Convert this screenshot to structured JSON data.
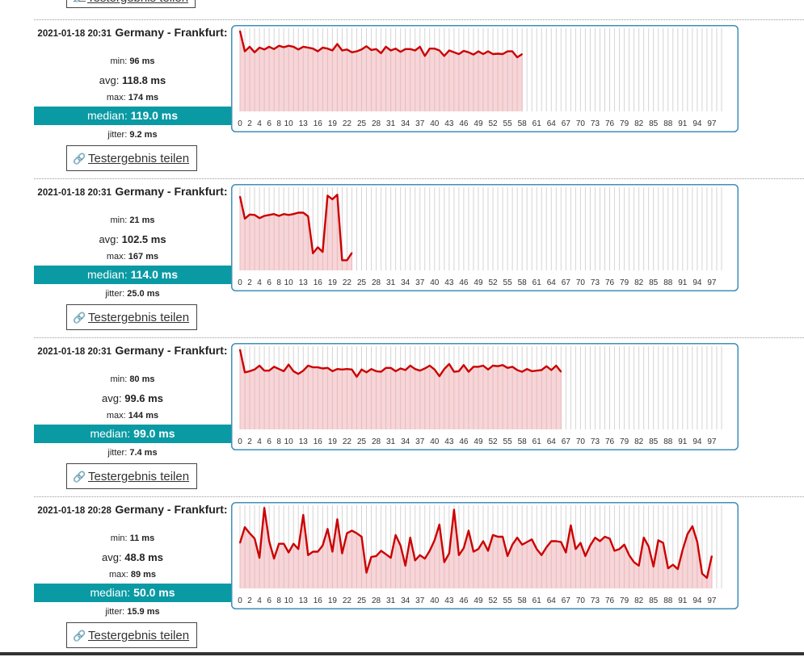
{
  "share_label": "Testergebnis teilen",
  "colors": {
    "accent": "#0a9aa4",
    "line": "#cc0000",
    "fill": "#f6d6d8",
    "frame": "#3f8fb8"
  },
  "icons": {
    "share": "link-icon"
  },
  "chart_data": [
    {
      "type": "line",
      "datetime": "2021-01-18 20:31",
      "location": "Germany - Frankfurt:",
      "stats": {
        "min": "96 ms",
        "avg": "118.8 ms",
        "max": "174 ms",
        "median": "119.0 ms",
        "jitter": "9.2 ms"
      },
      "x_ticks": [
        0,
        2,
        4,
        6,
        8,
        10,
        13,
        16,
        19,
        22,
        25,
        28,
        31,
        34,
        37,
        40,
        43,
        46,
        49,
        52,
        55,
        58,
        61,
        64,
        67,
        70,
        73,
        76,
        79,
        82,
        85,
        88,
        91,
        94,
        97
      ],
      "x_max": 99,
      "ylim": [
        0,
        180
      ],
      "values": [
        174,
        130,
        140,
        128,
        138,
        134,
        140,
        135,
        142,
        139,
        142,
        140,
        134,
        140,
        138,
        136,
        130,
        138,
        136,
        132,
        146,
        132,
        134,
        128,
        130,
        134,
        141,
        133,
        135,
        126,
        140,
        132,
        136,
        129,
        135,
        135,
        132,
        140,
        120,
        136,
        136,
        132,
        120,
        132,
        128,
        124,
        131,
        128,
        123,
        130,
        124,
        130,
        124,
        125,
        124,
        130,
        130,
        117,
        124
      ]
    },
    {
      "type": "line",
      "datetime": "2021-01-18 20:31",
      "location": "Germany - Frankfurt:",
      "stats": {
        "min": "21 ms",
        "avg": "102.5 ms",
        "max": "167 ms",
        "median": "114.0 ms",
        "jitter": "25.0 ms"
      },
      "x_ticks": [
        0,
        2,
        4,
        6,
        8,
        10,
        13,
        16,
        19,
        22,
        25,
        28,
        31,
        34,
        37,
        40,
        43,
        46,
        49,
        52,
        55,
        58,
        61,
        64,
        67,
        70,
        73,
        76,
        79,
        82,
        85,
        88,
        91,
        94,
        97
      ],
      "x_max": 99,
      "ylim": [
        0,
        180
      ],
      "values": [
        160,
        112,
        121,
        120,
        113,
        118,
        120,
        122,
        118,
        122,
        120,
        122,
        125,
        125,
        117,
        37,
        50,
        40,
        162,
        154,
        164,
        22,
        22,
        38
      ]
    },
    {
      "type": "line",
      "datetime": "2021-01-18 20:31",
      "location": "Germany - Frankfurt:",
      "stats": {
        "min": "80 ms",
        "avg": "99.6 ms",
        "max": "144 ms",
        "median": "99.0 ms",
        "jitter": "7.4 ms"
      },
      "x_ticks": [
        0,
        2,
        4,
        6,
        8,
        10,
        13,
        16,
        19,
        22,
        25,
        28,
        31,
        34,
        37,
        40,
        43,
        46,
        49,
        52,
        55,
        58,
        61,
        64,
        67,
        70,
        73,
        76,
        79,
        82,
        85,
        88,
        91,
        94,
        97
      ],
      "x_max": 99,
      "ylim": [
        0,
        150
      ],
      "values": [
        144,
        103,
        105,
        108,
        115,
        106,
        106,
        113,
        109,
        105,
        117,
        105,
        100,
        106,
        115,
        112,
        112,
        110,
        111,
        105,
        109,
        108,
        109,
        108,
        95,
        108,
        103,
        109,
        105,
        104,
        111,
        111,
        105,
        110,
        107,
        115,
        109,
        106,
        110,
        115,
        108,
        96,
        109,
        118,
        104,
        105,
        116,
        104,
        113,
        113,
        115,
        108,
        115,
        114,
        116,
        111,
        113,
        107,
        104,
        109,
        105,
        106,
        107,
        114,
        107,
        115,
        104
      ]
    },
    {
      "type": "line",
      "datetime": "2021-01-18 20:28",
      "location": "Germany - Frankfurt:",
      "stats": {
        "min": "11 ms",
        "avg": "48.8 ms",
        "max": "89 ms",
        "median": "50.0 ms",
        "jitter": "15.9 ms"
      },
      "x_ticks": [
        0,
        2,
        4,
        6,
        8,
        10,
        13,
        16,
        19,
        22,
        25,
        28,
        31,
        34,
        37,
        40,
        43,
        46,
        49,
        52,
        55,
        58,
        61,
        64,
        67,
        70,
        73,
        76,
        79,
        82,
        85,
        88,
        91,
        94,
        97
      ],
      "x_max": 99,
      "ylim": [
        0,
        95
      ],
      "values": [
        52,
        70,
        63,
        57,
        35,
        92,
        54,
        34,
        51,
        51,
        41,
        51,
        45,
        84,
        38,
        42,
        42,
        49,
        68,
        42,
        79,
        40,
        63,
        66,
        63,
        59,
        18,
        36,
        37,
        43,
        39,
        35,
        61,
        49,
        26,
        58,
        32,
        38,
        34,
        43,
        55,
        73,
        30,
        40,
        90,
        38,
        46,
        66,
        42,
        45,
        54,
        43,
        61,
        59,
        59,
        37,
        50,
        58,
        50,
        53,
        56,
        45,
        38,
        47,
        54,
        54,
        53,
        41,
        72,
        45,
        52,
        37,
        49,
        58,
        54,
        59,
        57,
        43,
        45,
        50,
        38,
        30,
        26,
        58,
        48,
        25,
        55,
        52,
        23,
        27,
        22,
        44,
        62,
        71,
        53,
        17,
        12,
        37
      ]
    }
  ],
  "tops": [
    26,
    223,
    420,
    617
  ]
}
